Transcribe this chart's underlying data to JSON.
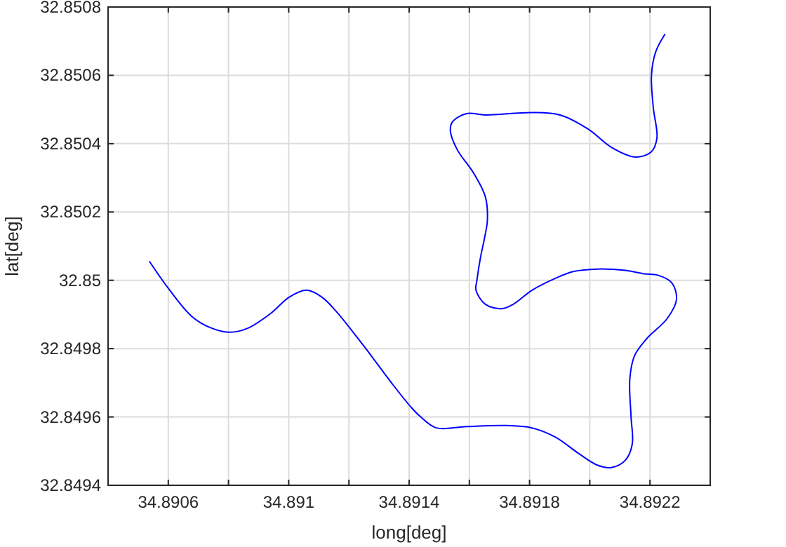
{
  "chart_data": {
    "type": "line",
    "xlabel": "long[deg]",
    "ylabel": "lat[deg]",
    "xlim": [
      34.8904,
      34.8924
    ],
    "xticks": [
      34.8906,
      {
        "value": 34.8908,
        "label": null
      },
      34.891,
      {
        "value": 34.8912,
        "label": null
      },
      34.8914,
      {
        "value": 34.8916,
        "label": null
      },
      34.8918,
      {
        "value": 34.892,
        "label": null
      },
      34.8922
    ],
    "ylim": [
      32.8494,
      32.8508
    ],
    "yticks": [
      32.8494,
      32.8496,
      32.8498,
      32.85,
      32.8502,
      32.8504,
      32.8506,
      32.8508
    ],
    "grid": true,
    "marker": "none",
    "line_style": "solid",
    "series": [
      {
        "color": "#0000ff",
        "x": [
          34.890537,
          34.890599,
          34.890676,
          34.890738,
          34.890803,
          34.890862,
          34.89094,
          34.891002,
          34.89106,
          34.89111,
          34.891157,
          34.89125,
          34.891343,
          34.891405,
          34.891436,
          34.89149,
          34.891591,
          34.891715,
          34.891808,
          34.891886,
          34.891963,
          34.892025,
          34.892072,
          34.892118,
          34.892141,
          34.892137,
          34.892133,
          34.892149,
          34.892188,
          34.892258,
          34.892288,
          34.892273,
          34.892226,
          34.89218,
          34.892118,
          34.892025,
          34.891947,
          34.891886,
          34.891808,
          34.891746,
          34.891707,
          34.891653,
          34.891622,
          34.891625,
          34.891637,
          34.89165,
          34.89166,
          34.891653,
          34.891614,
          34.89156,
          34.891537,
          34.891544,
          34.891591,
          34.891653,
          34.891808,
          34.891901,
          34.891994,
          34.892072,
          34.892149,
          34.892203,
          34.892223,
          34.892211,
          34.892205,
          34.892219,
          34.89225
        ],
        "values": [
          32.850056,
          32.849978,
          32.849896,
          32.849862,
          32.849848,
          32.849859,
          32.849903,
          32.849951,
          32.849971,
          32.849951,
          32.84991,
          32.849807,
          32.849698,
          32.84963,
          32.849602,
          32.849568,
          32.849572,
          32.849575,
          32.849568,
          32.849541,
          32.849493,
          32.849459,
          32.849452,
          32.849473,
          32.84952,
          32.849602,
          32.849712,
          32.84978,
          32.849828,
          32.849889,
          32.849944,
          32.849992,
          32.850015,
          32.850019,
          32.850029,
          32.850033,
          32.850026,
          32.850006,
          32.849971,
          32.84993,
          32.849917,
          32.84993,
          32.849971,
          32.849999,
          32.850067,
          32.850122,
          32.850177,
          32.850245,
          32.850314,
          32.850382,
          32.850437,
          32.850464,
          32.850488,
          32.850484,
          32.850491,
          32.850484,
          32.850443,
          32.850389,
          32.850361,
          32.850375,
          32.850416,
          32.850505,
          32.850601,
          32.850669,
          32.850721
        ]
      }
    ]
  }
}
